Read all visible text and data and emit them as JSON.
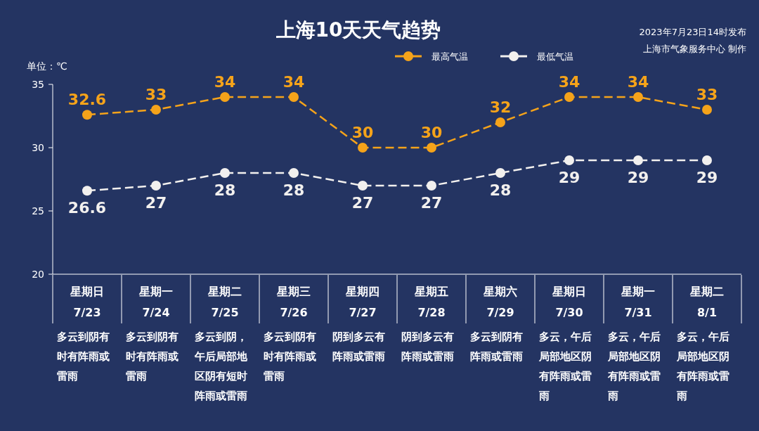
{
  "chart_data": {
    "type": "line",
    "title": "上海10天天气趋势",
    "ylabel": "单位：℃",
    "categories": [
      "星期日\n7/23",
      "星期一\n7/24",
      "星期二\n7/25",
      "星期三\n7/26",
      "星期四\n7/27",
      "星期五\n7/28",
      "星期六\n7/29",
      "星期日\n7/30",
      "星期一\n7/31",
      "星期二\n8/1"
    ],
    "series": [
      {
        "name": "最高气温",
        "color": "#f5a31a",
        "values": [
          32.6,
          33,
          34,
          34,
          30,
          30,
          32,
          34,
          34,
          33
        ]
      },
      {
        "name": "最低气温",
        "color": "#f2f0ee",
        "values": [
          26.6,
          27,
          28,
          28,
          27,
          27,
          28,
          29,
          29,
          29
        ]
      }
    ],
    "ylim": [
      20,
      35
    ],
    "yticks": [
      20,
      25,
      30,
      35
    ],
    "data_labels": true,
    "marker": "circle",
    "line_style": "dashed",
    "legend": "top",
    "grid": false,
    "annotations": [
      "2023年7月23日14时发布",
      "上海市气象服务中心 制作",
      "多云到阴有时有阵雨或雷雨",
      "多云到阴有时有阵雨或雷雨",
      "多云到阴，午后局部地区阴有短时阵雨或雷雨",
      "多云到阴有时有阵雨或雷雨",
      "阴到多云有阵雨或雷雨",
      "阴到多云有阵雨或雷雨",
      "多云到阴有阵雨或雷雨",
      "多云，午后局部地区阴有阵雨或雷雨",
      "多云，午后局部地区阴有阵雨或雷雨",
      "多云，午后局部地区阴有阵雨或雷雨"
    ]
  }
}
